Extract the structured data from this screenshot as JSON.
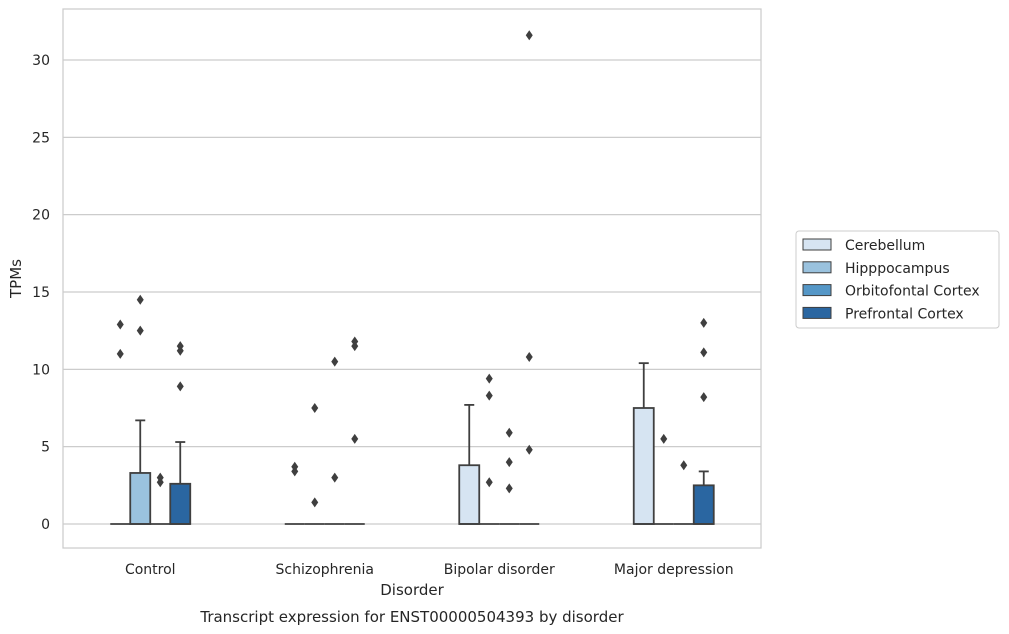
{
  "chart_data": {
    "type": "box",
    "title": "",
    "caption": "Transcript expression for ENST00000504393 by disorder",
    "xlabel": "Disorder",
    "ylabel": "TPMs",
    "ylim": [
      -1.5,
      33
    ],
    "yticks": [
      0,
      5,
      10,
      15,
      20,
      25,
      30
    ],
    "grid": "horizontal",
    "legend_position": "right",
    "categories": [
      "Control",
      "Schizophrenia",
      "Bipolar disorder",
      "Major depression"
    ],
    "series": [
      {
        "name": "Cerebellum",
        "color": "#d6e4f2",
        "boxes": [
          {
            "min": 0,
            "q1": 0,
            "median": 0,
            "q3": 0,
            "max": 0,
            "outliers": [
              11.0,
              12.9
            ]
          },
          {
            "min": 0,
            "q1": 0,
            "median": 0,
            "q3": 0,
            "max": 0,
            "outliers": [
              3.4,
              3.7
            ]
          },
          {
            "min": 0,
            "q1": 0,
            "median": 0,
            "q3": 3.8,
            "max": 7.7,
            "outliers": []
          },
          {
            "min": 0,
            "q1": 0,
            "median": 0,
            "q3": 7.5,
            "max": 10.4,
            "outliers": []
          }
        ]
      },
      {
        "name": "Hipppocampus",
        "color": "#9ac2de",
        "boxes": [
          {
            "min": 0,
            "q1": 0,
            "median": 0,
            "q3": 3.3,
            "max": 6.7,
            "outliers": [
              12.5,
              14.5
            ]
          },
          {
            "min": 0,
            "q1": 0,
            "median": 0,
            "q3": 0,
            "max": 0,
            "outliers": [
              1.4,
              7.5
            ]
          },
          {
            "min": 0,
            "q1": 0,
            "median": 0,
            "q3": 0,
            "max": 0,
            "outliers": [
              2.7,
              8.3,
              9.4
            ]
          },
          {
            "min": 0,
            "q1": 0,
            "median": 0,
            "q3": 0,
            "max": 0,
            "outliers": [
              5.5
            ]
          }
        ]
      },
      {
        "name": "Orbitofontal Cortex",
        "color": "#5597c7",
        "boxes": [
          {
            "min": 0,
            "q1": 0,
            "median": 0,
            "q3": 0,
            "max": 0,
            "outliers": [
              2.7,
              3.0
            ]
          },
          {
            "min": 0,
            "q1": 0,
            "median": 0,
            "q3": 0,
            "max": 0,
            "outliers": [
              3.0,
              10.5
            ]
          },
          {
            "min": 0,
            "q1": 0,
            "median": 0,
            "q3": 0,
            "max": 0,
            "outliers": [
              2.3,
              4.0,
              5.9
            ]
          },
          {
            "min": 0,
            "q1": 0,
            "median": 0,
            "q3": 0,
            "max": 0,
            "outliers": [
              3.8
            ]
          }
        ]
      },
      {
        "name": "Prefrontal Cortex",
        "color": "#2a66a1",
        "boxes": [
          {
            "min": 0,
            "q1": 0,
            "median": 0,
            "q3": 2.6,
            "max": 5.3,
            "outliers": [
              8.9,
              11.2,
              11.5
            ]
          },
          {
            "min": 0,
            "q1": 0,
            "median": 0,
            "q3": 0,
            "max": 0,
            "outliers": [
              5.5,
              11.5,
              11.8
            ]
          },
          {
            "min": 0,
            "q1": 0,
            "median": 0,
            "q3": 0,
            "max": 0,
            "outliers": [
              4.8,
              10.8,
              31.6
            ]
          },
          {
            "min": 0,
            "q1": 0,
            "median": 0,
            "q3": 2.5,
            "max": 3.4,
            "outliers": [
              8.2,
              11.1,
              13.0
            ]
          }
        ]
      }
    ]
  }
}
